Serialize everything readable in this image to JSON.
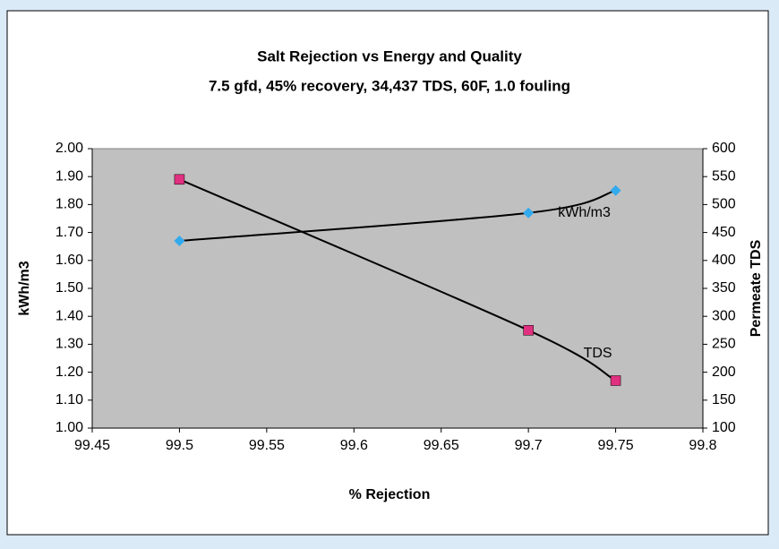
{
  "chart_data": {
    "type": "line",
    "title": "Salt Rejection vs Energy and Quality",
    "subtitle": "7.5 gfd, 45% recovery, 34,437 TDS, 60F, 1.0 fouling",
    "xlabel": "% Rejection",
    "ylabel": "kWh/m3",
    "y2label": "Permeate TDS",
    "x": [
      99.5,
      99.7,
      99.75
    ],
    "series": [
      {
        "name": "kWh/m3",
        "color": "#33aaee",
        "marker": "diamond",
        "values": [
          1.67,
          1.77,
          1.85
        ]
      },
      {
        "name": "TDS",
        "color": "#e0307f",
        "marker": "square",
        "axis": "y2",
        "values": [
          545,
          275,
          185
        ]
      }
    ],
    "xlim": [
      99.45,
      99.8
    ],
    "xticks": [
      99.45,
      99.5,
      99.55,
      99.6,
      99.65,
      99.7,
      99.75,
      99.8
    ],
    "ylim": [
      1.0,
      2.0
    ],
    "yticks": [
      {
        "value": 1.0,
        "label": "1.00"
      },
      {
        "value": 1.1,
        "label": "1.10"
      },
      {
        "value": 1.2,
        "label": "1.20"
      },
      {
        "value": 1.3,
        "label": "1.30"
      },
      {
        "value": 1.4,
        "label": "1.40"
      },
      {
        "value": 1.5,
        "label": "1.50"
      },
      {
        "value": 1.6,
        "label": "1.60"
      },
      {
        "value": 1.7,
        "label": "1.70"
      },
      {
        "value": 1.8,
        "label": "1.80"
      },
      {
        "value": 1.9,
        "label": "1.90"
      },
      {
        "value": 2.0,
        "label": "2.00"
      }
    ],
    "y2lim": [
      100,
      600
    ],
    "y2ticks": [
      100,
      150,
      200,
      250,
      300,
      350,
      400,
      450,
      500,
      550,
      600
    ],
    "plot_background": "#c0c0c0"
  }
}
